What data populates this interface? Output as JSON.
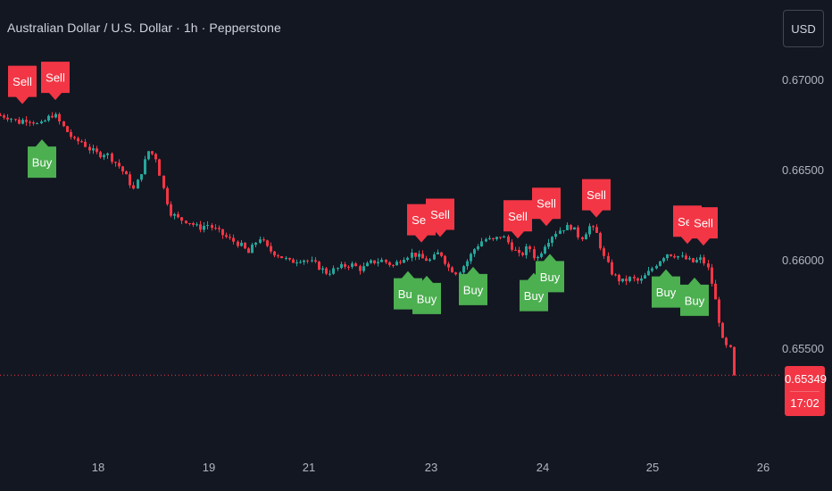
{
  "header": {
    "title": "Australian Dollar / U.S. Dollar · 1h · Pepperstone",
    "currency_button": "USD"
  },
  "colors": {
    "background": "#131722",
    "up": "#26a69a",
    "down": "#f23645",
    "buy_label": "#4caf50",
    "sell_label": "#f23645",
    "axis_text": "#b2b5be"
  },
  "price_badge": {
    "price": "0.65349",
    "countdown": "17:02"
  },
  "chart_data": {
    "type": "candlestick",
    "title": "Australian Dollar / U.S. Dollar · 1h · Pepperstone",
    "x_ticks": [
      "18",
      "19",
      "21",
      "23",
      "24",
      "25",
      "26"
    ],
    "y_ticks": [
      "0.67000",
      "0.66500",
      "0.66000",
      "0.65500"
    ],
    "ylim": [
      0.6517,
      0.6724
    ],
    "last_price": 0.65349,
    "grid": false,
    "close_path": [
      [
        0,
        0.668
      ],
      [
        10,
        0.6679
      ],
      [
        20,
        0.6676
      ],
      [
        28,
        0.6678
      ],
      [
        36,
        0.6677
      ],
      [
        44,
        0.6674
      ],
      [
        52,
        0.6678
      ],
      [
        60,
        0.6681
      ],
      [
        68,
        0.6675
      ],
      [
        76,
        0.667
      ],
      [
        84,
        0.6665
      ],
      [
        90,
        0.6666
      ],
      [
        100,
        0.6661
      ],
      [
        110,
        0.6658
      ],
      [
        118,
        0.6659
      ],
      [
        126,
        0.6655
      ],
      [
        134,
        0.6651
      ],
      [
        142,
        0.6645
      ],
      [
        150,
        0.6638
      ],
      [
        158,
        0.6649
      ],
      [
        166,
        0.666
      ],
      [
        174,
        0.6657
      ],
      [
        182,
        0.664
      ],
      [
        190,
        0.6626
      ],
      [
        200,
        0.6622
      ],
      [
        210,
        0.6621
      ],
      [
        222,
        0.6617
      ],
      [
        232,
        0.6619
      ],
      [
        244,
        0.6615
      ],
      [
        256,
        0.6611
      ],
      [
        268,
        0.6608
      ],
      [
        278,
        0.6603
      ],
      [
        290,
        0.6612
      ],
      [
        300,
        0.6605
      ],
      [
        312,
        0.6602
      ],
      [
        324,
        0.6598
      ],
      [
        338,
        0.66
      ],
      [
        352,
        0.6597
      ],
      [
        366,
        0.6592
      ],
      [
        380,
        0.6595
      ],
      [
        392,
        0.6597
      ],
      [
        404,
        0.6594
      ],
      [
        416,
        0.6598
      ],
      [
        428,
        0.6599
      ],
      [
        440,
        0.6596
      ],
      [
        452,
        0.6601
      ],
      [
        462,
        0.6603
      ],
      [
        472,
        0.66
      ],
      [
        482,
        0.6599
      ],
      [
        492,
        0.6604
      ],
      [
        502,
        0.6595
      ],
      [
        512,
        0.6592
      ],
      [
        522,
        0.6598
      ],
      [
        532,
        0.6606
      ],
      [
        542,
        0.6611
      ],
      [
        552,
        0.661
      ],
      [
        562,
        0.6613
      ],
      [
        572,
        0.6607
      ],
      [
        582,
        0.6601
      ],
      [
        592,
        0.6607
      ],
      [
        600,
        0.6599
      ],
      [
        610,
        0.6608
      ],
      [
        620,
        0.6614
      ],
      [
        630,
        0.6617
      ],
      [
        640,
        0.6618
      ],
      [
        650,
        0.6611
      ],
      [
        660,
        0.6618
      ],
      [
        668,
        0.6614
      ],
      [
        676,
        0.6601
      ],
      [
        686,
        0.6591
      ],
      [
        696,
        0.6587
      ],
      [
        706,
        0.6589
      ],
      [
        716,
        0.6587
      ],
      [
        726,
        0.6592
      ],
      [
        736,
        0.6598
      ],
      [
        746,
        0.6603
      ],
      [
        756,
        0.6602
      ],
      [
        766,
        0.66
      ],
      [
        776,
        0.6598
      ],
      [
        786,
        0.66
      ],
      [
        794,
        0.6593
      ],
      [
        802,
        0.6574
      ],
      [
        810,
        0.6552
      ],
      [
        818,
        0.6549
      ],
      [
        824,
        0.65349
      ]
    ],
    "signals": [
      {
        "type": "Sell",
        "bar_x": 25
      },
      {
        "type": "Sell",
        "bar_x": 62
      },
      {
        "type": "Buy",
        "bar_x": 47
      },
      {
        "type": "Buy",
        "bar_x": 457
      },
      {
        "type": "Sell",
        "bar_x": 472
      },
      {
        "type": "Buy",
        "bar_x": 478
      },
      {
        "type": "Sell",
        "bar_x": 493
      },
      {
        "type": "Buy",
        "bar_x": 530
      },
      {
        "type": "Sell",
        "bar_x": 580
      },
      {
        "type": "Buy",
        "bar_x": 598
      },
      {
        "type": "Sell",
        "bar_x": 612
      },
      {
        "type": "Buy",
        "bar_x": 616
      },
      {
        "type": "Sell",
        "bar_x": 668
      },
      {
        "type": "Buy",
        "bar_x": 746
      },
      {
        "type": "Sell",
        "bar_x": 770
      },
      {
        "type": "Buy",
        "bar_x": 778
      },
      {
        "type": "Sell",
        "bar_x": 788
      }
    ]
  }
}
